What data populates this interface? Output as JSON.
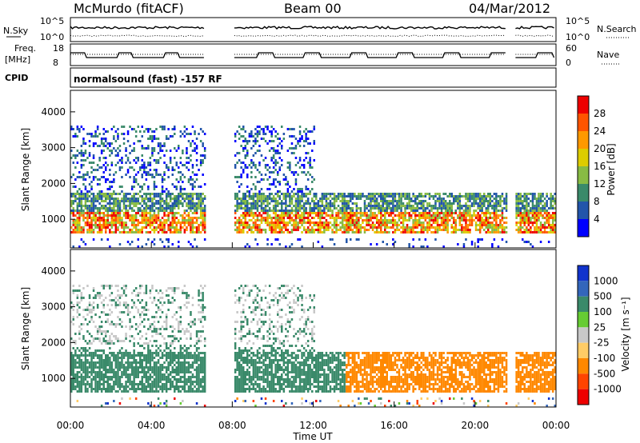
{
  "header": {
    "station": "McMurdo (fitACF)",
    "beam": "Beam 00",
    "date": "04/Mar/2012"
  },
  "panels": {
    "nsky_label": "N.Sky",
    "nsky_ticks": [
      "10^5",
      "10^0"
    ],
    "nsearch_label": "N.Search",
    "nsearch_ticks": [
      "10^5",
      "10^0"
    ],
    "freq_label_1": "Freq.",
    "freq_label_2": "[MHz]",
    "freq_ticks": [
      "18",
      "8"
    ],
    "nave_label": "Nave",
    "nave_ticks": [
      "60",
      "0"
    ],
    "cpid_label": "CPID",
    "cpid_text": "normalsound (fast) -157 RF"
  },
  "chart_data": [
    {
      "type": "heatmap",
      "name": "power",
      "ylabel": "Slant Range [km]",
      "yticks": [
        "1000",
        "2000",
        "3000",
        "4000"
      ],
      "ylim": [
        200,
        4600
      ],
      "colorbar_label": "Power [dB]",
      "colorbar_ticks": [
        "4",
        "8",
        "12",
        "16",
        "20",
        "24",
        "28"
      ],
      "colors": [
        "#0000ff",
        "#2255aa",
        "#3a8a6a",
        "#88bb44",
        "#ddcc00",
        "#ff9900",
        "#ff5500",
        "#ee0000"
      ]
    },
    {
      "type": "heatmap",
      "name": "velocity",
      "ylabel": "Slant Range [km]",
      "yticks": [
        "1000",
        "2000",
        "3000",
        "4000"
      ],
      "ylim": [
        200,
        4600
      ],
      "colorbar_label": "Velocity [m s⁻¹]",
      "colorbar_ticks": [
        "1000",
        "500",
        "100",
        "25",
        "-25",
        "-100",
        "-500",
        "-1000"
      ],
      "colors": [
        "#1133cc",
        "#3366bb",
        "#3a8a6a",
        "#66cc33",
        "#c8c8c8",
        "#ffcc66",
        "#ff8800",
        "#ff4400",
        "#ee0000"
      ]
    }
  ],
  "xaxis": {
    "label": "Time UT",
    "ticks": [
      "00:00",
      "04:00",
      "08:00",
      "12:00",
      "16:00",
      "20:00",
      "00:00"
    ]
  }
}
